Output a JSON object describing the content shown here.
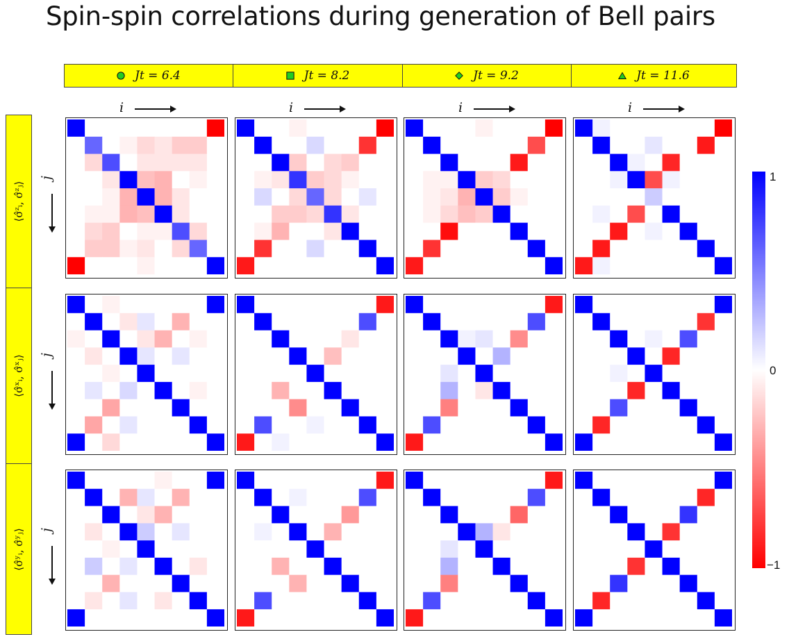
{
  "title": "Spin-spin correlations during generation of Bell pairs",
  "columns": [
    {
      "label": "Jt = 6.4",
      "marker": "circle",
      "marker_color": "#22cc22"
    },
    {
      "label": "Jt = 8.2",
      "marker": "square",
      "marker_color": "#22cc22"
    },
    {
      "label": "Jt = 9.2",
      "marker": "diamond",
      "marker_color": "#22cc22"
    },
    {
      "label": "Jt = 11.6",
      "marker": "triangle",
      "marker_color": "#22cc22"
    }
  ],
  "rows": [
    {
      "label": "⟨σ̂ᶻᵢ, σ̂ᶻⱼ⟩"
    },
    {
      "label": "⟨σ̂ˣᵢ, σ̂ˣⱼ⟩"
    },
    {
      "label": "⟨σ̂ʸᵢ, σ̂ʸⱼ⟩"
    }
  ],
  "axis_labels": {
    "i": "i",
    "j": "j"
  },
  "colorbar": {
    "max_label": "1",
    "mid_label": "0",
    "min_label": "−1",
    "max_color": "#0000ff",
    "min_color": "#ff0000",
    "mid_color": "#ffffff"
  },
  "chart_data": {
    "type": "heatmap",
    "title": "Spin-spin correlations during generation of Bell pairs",
    "grid_size": 9,
    "value_range": [
      -1,
      1
    ],
    "description_cols": [
      "Jt = 6.4",
      "Jt = 8.2",
      "Jt = 9.2",
      "Jt = 11.6"
    ],
    "description_rows": [
      "zz",
      "xx",
      "yy"
    ],
    "panels": [
      [
        [
          [
            1,
            0,
            0,
            0,
            0,
            0,
            0,
            0,
            -1
          ],
          [
            0,
            0.6,
            0,
            -0.05,
            -0.15,
            -0.1,
            -0.2,
            -0.2,
            0
          ],
          [
            0,
            -0.15,
            0.7,
            0,
            -0.1,
            -0.1,
            -0.1,
            -0.1,
            0
          ],
          [
            0,
            0,
            -0.1,
            1,
            -0.25,
            -0.3,
            0,
            -0.05,
            0
          ],
          [
            0,
            0,
            -0.05,
            -0.3,
            1,
            -0.3,
            -0.1,
            0,
            0
          ],
          [
            0,
            -0.05,
            -0.05,
            -0.3,
            -0.25,
            1,
            -0.1,
            0,
            0
          ],
          [
            0,
            -0.15,
            -0.2,
            0,
            -0.05,
            -0.05,
            0.7,
            -0.15,
            0
          ],
          [
            0,
            -0.2,
            -0.2,
            -0.05,
            -0.1,
            0,
            -0.15,
            0.6,
            0
          ],
          [
            -1,
            0,
            0,
            0,
            -0.05,
            0,
            0,
            0,
            1
          ]
        ],
        [
          [
            1,
            0,
            0,
            -0.05,
            0,
            0,
            0,
            0,
            -1
          ],
          [
            0,
            1,
            0,
            0,
            0.15,
            0,
            0,
            -0.8,
            0
          ],
          [
            0,
            0,
            1,
            -0.2,
            0,
            -0.15,
            -0.2,
            0,
            0
          ],
          [
            0,
            -0.05,
            -0.1,
            0.8,
            -0.2,
            -0.15,
            -0.05,
            0,
            0
          ],
          [
            0,
            0.15,
            0,
            -0.15,
            0.6,
            -0.15,
            0,
            0.1,
            0
          ],
          [
            0,
            0,
            -0.2,
            -0.2,
            -0.15,
            0.8,
            -0.1,
            0,
            0
          ],
          [
            0,
            -0.05,
            -0.3,
            0,
            0,
            -0.1,
            1,
            0,
            0
          ],
          [
            0,
            -0.8,
            0,
            0,
            0.15,
            0,
            0,
            1,
            0
          ],
          [
            -0.9,
            0,
            0,
            0,
            0,
            0,
            0,
            0,
            1
          ]
        ],
        [
          [
            1,
            0,
            0,
            0,
            -0.05,
            0,
            0,
            0,
            -1
          ],
          [
            0,
            1,
            0,
            0,
            0,
            0,
            0,
            -0.7,
            0
          ],
          [
            0,
            0,
            1,
            0,
            0,
            0,
            -0.9,
            0,
            0
          ],
          [
            0,
            -0.05,
            -0.05,
            1,
            -0.2,
            -0.15,
            0,
            0,
            0
          ],
          [
            0,
            -0.05,
            -0.1,
            -0.3,
            1,
            -0.2,
            -0.05,
            0,
            0
          ],
          [
            0,
            -0.05,
            -0.15,
            -0.25,
            -0.2,
            1,
            0,
            0,
            0
          ],
          [
            0,
            0,
            -0.95,
            0,
            0,
            0,
            1,
            0,
            0
          ],
          [
            0,
            -0.8,
            0,
            0,
            0,
            0,
            0,
            1,
            0
          ],
          [
            -0.9,
            0,
            0,
            0,
            0,
            0,
            0,
            0,
            1
          ]
        ],
        [
          [
            1,
            0.05,
            0,
            0,
            0,
            0,
            0,
            0,
            -1
          ],
          [
            0,
            1,
            0,
            0,
            0.1,
            0,
            0,
            -0.9,
            0
          ],
          [
            0,
            0,
            1,
            0.05,
            0,
            -0.85,
            0,
            0,
            0
          ],
          [
            0,
            0,
            0.05,
            1,
            -0.7,
            0.05,
            0,
            0,
            0
          ],
          [
            0,
            0,
            0,
            0,
            0.2,
            0,
            0,
            0,
            0
          ],
          [
            0,
            0.05,
            0,
            -0.7,
            0,
            1,
            0,
            0,
            0
          ],
          [
            0,
            0,
            -0.9,
            0,
            0.05,
            0,
            1,
            0,
            0
          ],
          [
            0,
            -0.9,
            0,
            0,
            0,
            0,
            0,
            1,
            0
          ],
          [
            -0.9,
            0.05,
            0,
            0,
            0,
            0,
            0,
            0,
            1
          ]
        ]
      ],
      [
        [
          [
            1,
            0,
            -0.05,
            0,
            0,
            0,
            0,
            0,
            1
          ],
          [
            0,
            1,
            0,
            -0.1,
            0.1,
            0,
            -0.3,
            0,
            0
          ],
          [
            -0.05,
            0,
            1,
            0,
            -0.1,
            -0.3,
            0,
            -0.05,
            0
          ],
          [
            0,
            -0.1,
            0,
            1,
            0.1,
            0,
            0.1,
            0,
            0
          ],
          [
            0,
            0,
            -0.05,
            0,
            1,
            0,
            0,
            0,
            0
          ],
          [
            0,
            0.1,
            0,
            0.15,
            0,
            1,
            0,
            -0.05,
            0
          ],
          [
            0,
            0,
            -0.35,
            0,
            0,
            0,
            1,
            0,
            0
          ],
          [
            0,
            -0.35,
            0,
            0.1,
            0,
            0,
            0,
            1,
            0
          ],
          [
            1,
            0,
            -0.15,
            0,
            0,
            0,
            0,
            0,
            1
          ]
        ],
        [
          [
            1,
            0,
            0,
            0,
            0,
            0,
            0,
            0,
            -0.9
          ],
          [
            0,
            1,
            0,
            0,
            0,
            0,
            0,
            0.7,
            0
          ],
          [
            0,
            0,
            1,
            0,
            0,
            0,
            -0.1,
            0,
            0
          ],
          [
            0,
            0,
            0,
            1,
            0,
            -0.25,
            0,
            0,
            0
          ],
          [
            0,
            0,
            0,
            0,
            1,
            0,
            0,
            0,
            0
          ],
          [
            0,
            0,
            -0.3,
            0,
            0,
            1,
            0,
            0,
            0
          ],
          [
            0,
            0,
            0,
            -0.45,
            0,
            0,
            1,
            0,
            0
          ],
          [
            0,
            0.7,
            0,
            0,
            0.05,
            0,
            0,
            1,
            0
          ],
          [
            -0.9,
            0,
            0.05,
            0,
            0,
            0,
            0,
            0,
            1
          ]
        ],
        [
          [
            1,
            0,
            0,
            0,
            0,
            0,
            0,
            0,
            -0.9
          ],
          [
            0,
            1,
            0,
            0,
            0,
            0,
            0,
            0.7,
            0
          ],
          [
            0,
            0,
            1,
            0.05,
            0.1,
            0,
            -0.45,
            0,
            0
          ],
          [
            0,
            0,
            0,
            1,
            0,
            0.3,
            0,
            0,
            0
          ],
          [
            0,
            0,
            0.1,
            0,
            1,
            0,
            0,
            0,
            0
          ],
          [
            0,
            0,
            0.3,
            0,
            -0.1,
            1,
            0,
            0,
            0
          ],
          [
            0,
            0,
            -0.5,
            0,
            0,
            0,
            1,
            0,
            0
          ],
          [
            0,
            0.7,
            0,
            0,
            0,
            0,
            0,
            1,
            0
          ],
          [
            -0.9,
            0,
            0,
            0,
            0,
            0,
            0,
            0,
            1
          ]
        ],
        [
          [
            1,
            0,
            0,
            0,
            0,
            0,
            0,
            0,
            1
          ],
          [
            0,
            1,
            0,
            0,
            0,
            0,
            0,
            -0.8,
            0
          ],
          [
            0,
            0,
            1,
            0,
            0.05,
            0,
            0.7,
            0,
            0
          ],
          [
            0,
            0,
            0,
            1,
            0,
            -0.85,
            0,
            0,
            0
          ],
          [
            0,
            0,
            0.05,
            0,
            1,
            0,
            0,
            0,
            0
          ],
          [
            0,
            0,
            0,
            -0.85,
            0,
            1,
            0,
            0,
            0
          ],
          [
            0,
            0,
            0.7,
            0,
            0,
            0,
            1,
            0,
            0
          ],
          [
            0,
            -0.85,
            0,
            0,
            0,
            0,
            0,
            1,
            0
          ],
          [
            1,
            0,
            0,
            0,
            0,
            0,
            0,
            0,
            1
          ]
        ]
      ],
      [
        [
          [
            1,
            0,
            0,
            0,
            0,
            -0.05,
            0,
            0,
            1
          ],
          [
            0,
            1,
            0,
            -0.3,
            0.1,
            0,
            -0.3,
            0,
            0
          ],
          [
            0,
            0,
            1,
            0,
            -0.1,
            -0.3,
            0,
            0,
            0
          ],
          [
            0,
            -0.1,
            0,
            1,
            0.2,
            0,
            0.1,
            0,
            0
          ],
          [
            0,
            0,
            -0.05,
            0,
            1,
            0,
            0,
            0,
            0
          ],
          [
            0,
            0.2,
            0,
            0.1,
            0,
            1,
            0,
            -0.1,
            0
          ],
          [
            0,
            0,
            -0.3,
            0,
            0,
            0,
            1,
            0,
            0
          ],
          [
            0,
            -0.1,
            0,
            0.1,
            0,
            -0.1,
            0,
            1,
            0
          ],
          [
            1,
            0,
            0,
            0,
            0,
            0,
            0,
            0,
            1
          ]
        ],
        [
          [
            1,
            0,
            0,
            0,
            0,
            0,
            0,
            0,
            -0.9
          ],
          [
            0,
            1,
            0,
            0.05,
            0,
            0,
            0,
            0.7,
            0
          ],
          [
            0,
            0,
            1,
            0,
            0,
            0,
            -0.4,
            0,
            0
          ],
          [
            0,
            0.05,
            0,
            1,
            0,
            -0.3,
            0,
            0,
            0
          ],
          [
            0,
            0,
            0,
            0,
            1,
            0,
            0,
            0,
            0
          ],
          [
            0,
            0,
            -0.3,
            0,
            0,
            1,
            0,
            0,
            0
          ],
          [
            0,
            0,
            0,
            -0.3,
            0,
            0,
            1,
            0,
            0
          ],
          [
            0,
            0.7,
            0,
            0,
            0,
            0,
            0,
            1,
            0
          ],
          [
            -0.9,
            0,
            0,
            0,
            0,
            0,
            0,
            0,
            1
          ]
        ],
        [
          [
            1,
            0,
            0,
            0,
            0,
            0,
            0,
            0,
            -0.9
          ],
          [
            0,
            1,
            0,
            0,
            0,
            0,
            0,
            0.7,
            0
          ],
          [
            0,
            0,
            1,
            0,
            0,
            0,
            -0.6,
            0,
            0
          ],
          [
            0,
            0,
            0,
            1,
            0.3,
            -0.1,
            0,
            0,
            0
          ],
          [
            0,
            0,
            0.1,
            0,
            1,
            0,
            0,
            0,
            0
          ],
          [
            0,
            0,
            0.3,
            0,
            0,
            1,
            0,
            0,
            0
          ],
          [
            0,
            0,
            -0.5,
            0,
            0,
            0,
            1,
            0,
            0
          ],
          [
            0,
            0.7,
            0,
            0,
            0,
            0,
            0,
            1,
            0
          ],
          [
            -0.9,
            0,
            0,
            0,
            0,
            0,
            0,
            0,
            1
          ]
        ],
        [
          [
            1,
            0,
            0,
            0,
            0,
            0,
            0,
            0,
            1
          ],
          [
            0,
            1,
            0,
            0,
            0,
            0,
            0,
            -0.85,
            0
          ],
          [
            0,
            0,
            1,
            0,
            0,
            0,
            0.8,
            0,
            0
          ],
          [
            0,
            0,
            0,
            1,
            0,
            -0.8,
            0,
            0,
            0
          ],
          [
            0,
            0,
            0,
            0,
            1,
            0,
            0,
            0,
            0
          ],
          [
            0,
            0,
            0,
            -0.8,
            0,
            1,
            0,
            0,
            0
          ],
          [
            0,
            0,
            0.8,
            0,
            0,
            0,
            1,
            0,
            0
          ],
          [
            0,
            -0.85,
            0,
            0,
            0,
            0,
            0,
            1,
            0
          ],
          [
            1,
            0,
            0,
            0,
            0,
            0,
            0,
            0,
            1
          ]
        ]
      ]
    ]
  }
}
